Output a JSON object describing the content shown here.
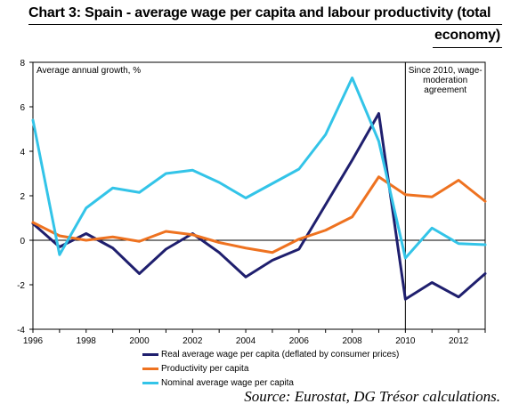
{
  "title": {
    "line1": "Chart 3: Spain - average wage per capita and labour productivity (total",
    "line2": "economy)"
  },
  "source": "Source: Eurostat, DG Trésor calculations.",
  "chart_data": {
    "type": "line",
    "subtitle": "Average annual growth, %",
    "annotation": [
      "Since 2010, wage-",
      "moderation",
      "agreement"
    ],
    "annotation_x": 2010,
    "x": [
      1996,
      1997,
      1998,
      1999,
      2000,
      2001,
      2002,
      2003,
      2004,
      2005,
      2006,
      2007,
      2008,
      2009,
      2010,
      2011,
      2012,
      2013
    ],
    "xticks": [
      1996,
      1998,
      2000,
      2002,
      2004,
      2006,
      2008,
      2010,
      2012
    ],
    "xlim": [
      1996,
      2013
    ],
    "ylim": [
      -4,
      8
    ],
    "yticks": [
      -4,
      -2,
      0,
      2,
      4,
      6,
      8
    ],
    "grid": false,
    "legend_position": "bottom",
    "series": [
      {
        "name": "Real average wage per capita (deflated by consumer prices)",
        "color": "#1f1f6e",
        "values": [
          0.75,
          -0.3,
          0.3,
          -0.35,
          -1.5,
          -0.4,
          0.3,
          -0.55,
          -1.65,
          -0.9,
          -0.4,
          1.6,
          3.6,
          5.7,
          -2.65,
          -1.9,
          -2.55,
          -1.5
        ]
      },
      {
        "name": "Productivity per capita",
        "color": "#ee7220",
        "values": [
          0.8,
          0.2,
          0.0,
          0.15,
          -0.05,
          0.4,
          0.25,
          -0.1,
          -0.35,
          -0.55,
          0.05,
          0.45,
          1.05,
          2.85,
          2.05,
          1.95,
          2.7,
          1.75
        ]
      },
      {
        "name": "Nominal average wage per capita",
        "color": "#33c4e8",
        "values": [
          5.4,
          -0.65,
          1.45,
          2.35,
          2.15,
          3.0,
          3.15,
          2.6,
          1.9,
          2.55,
          3.2,
          4.75,
          7.3,
          4.45,
          -0.8,
          0.55,
          -0.15,
          -0.2
        ]
      }
    ]
  }
}
